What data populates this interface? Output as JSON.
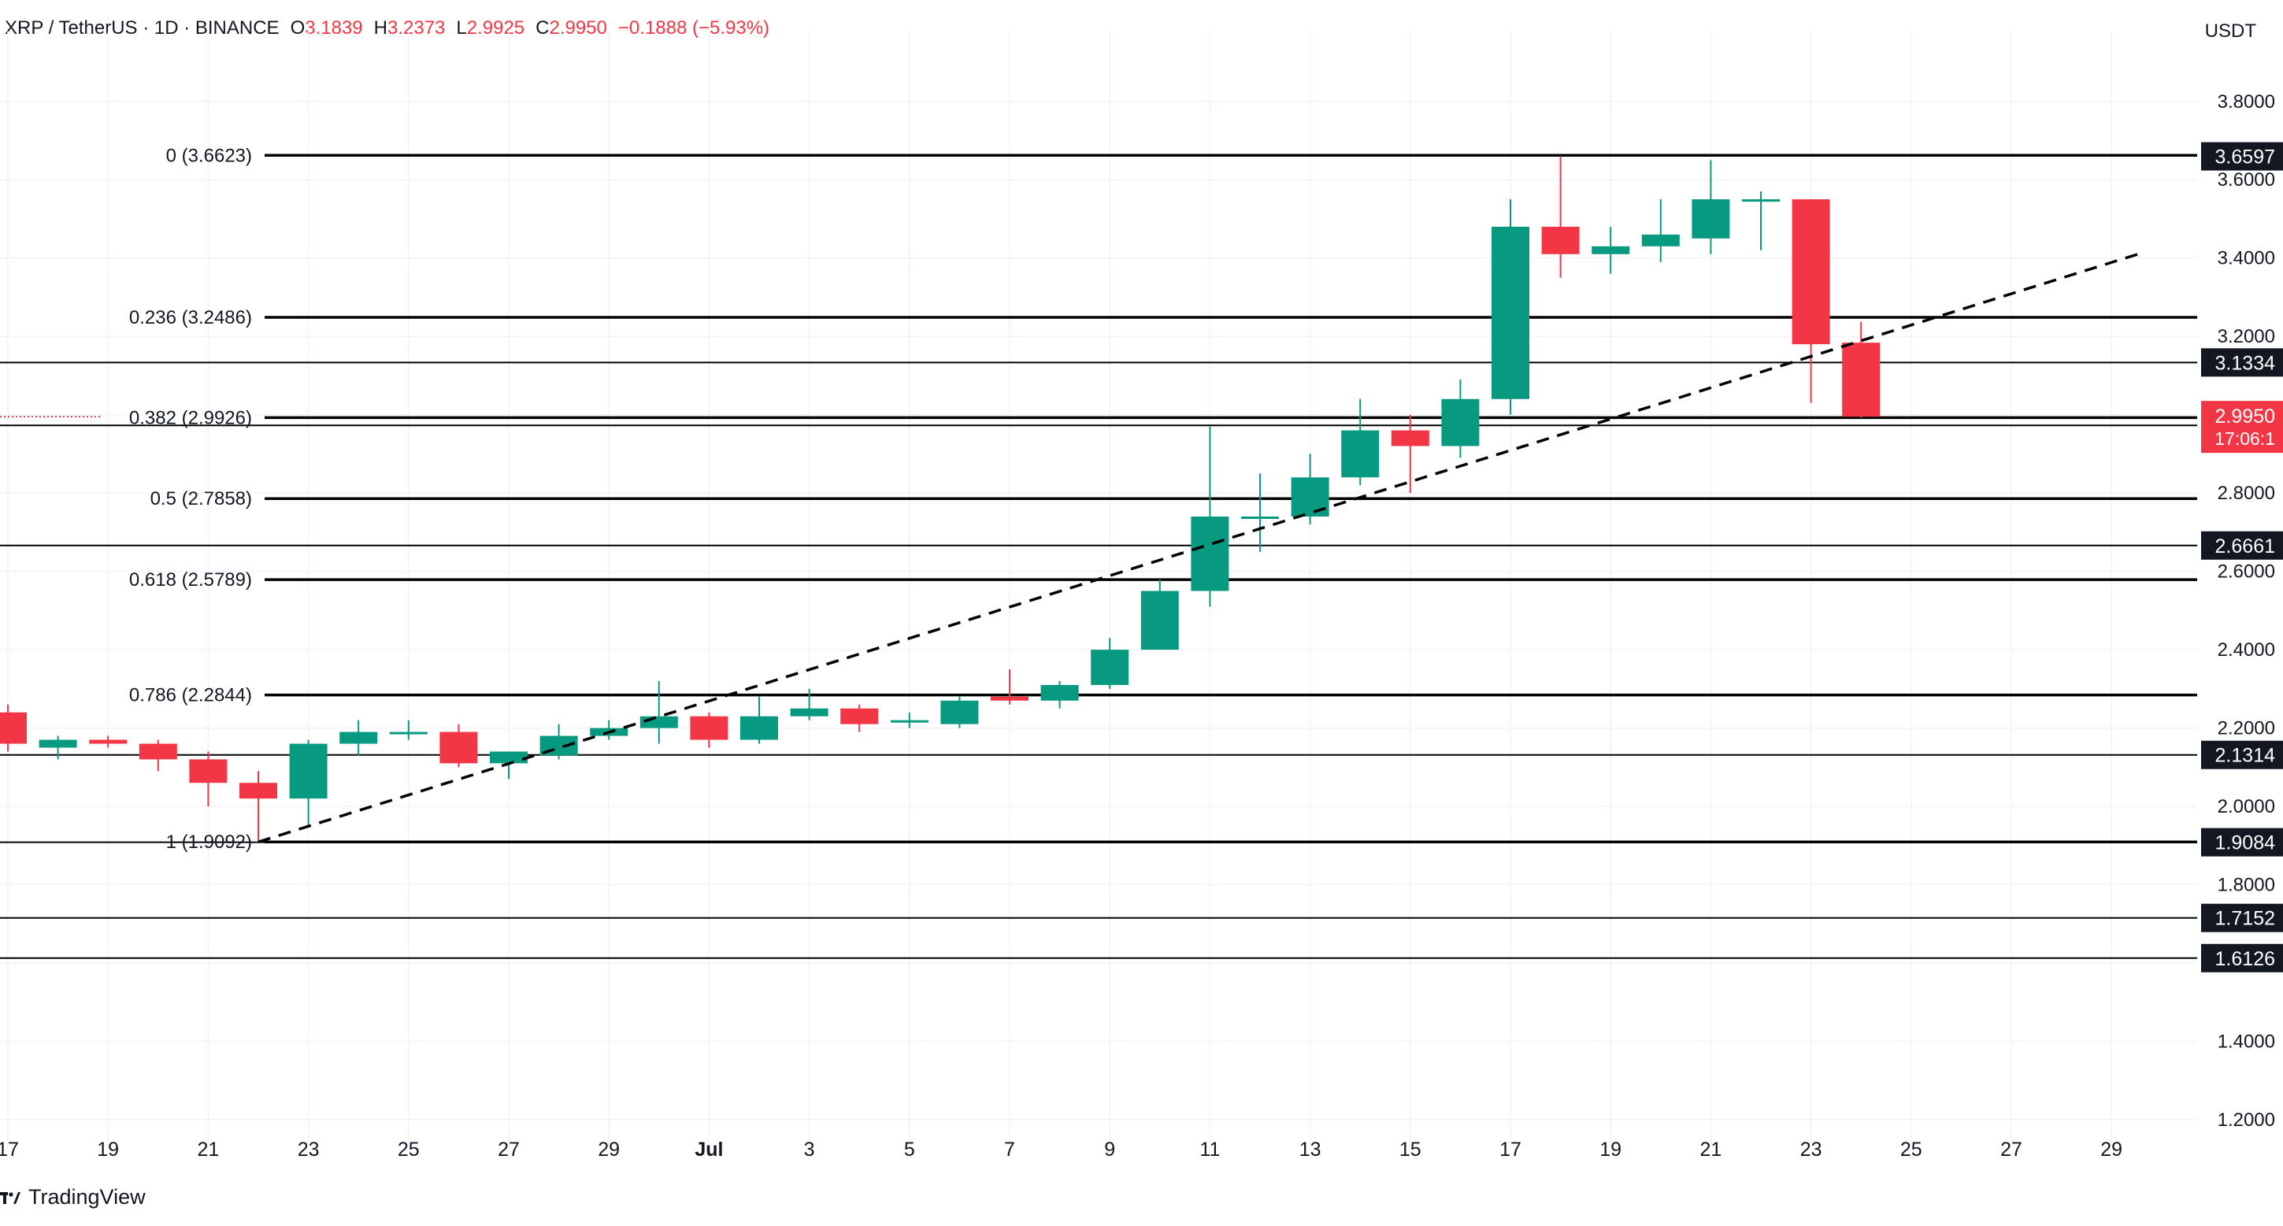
{
  "header": {
    "symbol": "XRP / TetherUS · 1D · BINANCE",
    "open_label": "O",
    "open": "3.1839",
    "high_label": "H",
    "high": "3.2373",
    "low_label": "L",
    "low": "2.9925",
    "close_label": "C",
    "close": "2.9950",
    "change": "−0.1888 (−5.93%)"
  },
  "currency": "USDT",
  "brand": "TradingView",
  "colors": {
    "up": "#089981",
    "down": "#f23645",
    "text": "#131722",
    "grid": "#f0f3fa",
    "line": "#000000"
  },
  "chart_data": {
    "type": "candlestick",
    "title": "XRP / TetherUS · 1D · BINANCE",
    "ylabel": "USDT",
    "ylim": [
      1.12,
      3.93
    ],
    "y_ticks": [
      "1.2000",
      "1.4000",
      "1.6000",
      "1.8000",
      "2.0000",
      "2.2000",
      "2.4000",
      "2.6000",
      "2.8000",
      "3.0000",
      "3.2000",
      "3.4000",
      "3.6000",
      "3.8000"
    ],
    "x_range": [
      "2025-06-17",
      "2025-07-30"
    ],
    "x_ticks": [
      {
        "date": "2025-06-17",
        "label": "17"
      },
      {
        "date": "2025-06-19",
        "label": "19"
      },
      {
        "date": "2025-06-21",
        "label": "21"
      },
      {
        "date": "2025-06-23",
        "label": "23"
      },
      {
        "date": "2025-06-25",
        "label": "25"
      },
      {
        "date": "2025-06-27",
        "label": "27"
      },
      {
        "date": "2025-06-29",
        "label": "29"
      },
      {
        "date": "2025-07-01",
        "label": "Jul"
      },
      {
        "date": "2025-07-03",
        "label": "3"
      },
      {
        "date": "2025-07-05",
        "label": "5"
      },
      {
        "date": "2025-07-07",
        "label": "7"
      },
      {
        "date": "2025-07-09",
        "label": "9"
      },
      {
        "date": "2025-07-11",
        "label": "11"
      },
      {
        "date": "2025-07-13",
        "label": "13"
      },
      {
        "date": "2025-07-15",
        "label": "15"
      },
      {
        "date": "2025-07-17",
        "label": "17"
      },
      {
        "date": "2025-07-19",
        "label": "19"
      },
      {
        "date": "2025-07-21",
        "label": "21"
      },
      {
        "date": "2025-07-23",
        "label": "23"
      },
      {
        "date": "2025-07-25",
        "label": "25"
      },
      {
        "date": "2025-07-27",
        "label": "27"
      },
      {
        "date": "2025-07-29",
        "label": "29"
      }
    ],
    "candles": [
      {
        "date": "2025-06-17",
        "o": 2.24,
        "h": 2.26,
        "l": 2.14,
        "c": 2.16
      },
      {
        "date": "2025-06-18",
        "o": 2.15,
        "h": 2.18,
        "l": 2.12,
        "c": 2.17
      },
      {
        "date": "2025-06-19",
        "o": 2.17,
        "h": 2.18,
        "l": 2.15,
        "c": 2.16
      },
      {
        "date": "2025-06-20",
        "o": 2.16,
        "h": 2.17,
        "l": 2.09,
        "c": 2.12
      },
      {
        "date": "2025-06-21",
        "o": 2.12,
        "h": 2.14,
        "l": 2.0,
        "c": 2.06
      },
      {
        "date": "2025-06-22",
        "o": 2.06,
        "h": 2.09,
        "l": 1.91,
        "c": 2.02
      },
      {
        "date": "2025-06-23",
        "o": 2.02,
        "h": 2.17,
        "l": 1.95,
        "c": 2.16
      },
      {
        "date": "2025-06-24",
        "o": 2.16,
        "h": 2.22,
        "l": 2.13,
        "c": 2.19
      },
      {
        "date": "2025-06-25",
        "o": 2.19,
        "h": 2.22,
        "l": 2.17,
        "c": 2.19
      },
      {
        "date": "2025-06-26",
        "o": 2.19,
        "h": 2.21,
        "l": 2.1,
        "c": 2.11
      },
      {
        "date": "2025-06-27",
        "o": 2.11,
        "h": 2.14,
        "l": 2.07,
        "c": 2.14
      },
      {
        "date": "2025-06-28",
        "o": 2.13,
        "h": 2.21,
        "l": 2.12,
        "c": 2.18
      },
      {
        "date": "2025-06-29",
        "o": 2.18,
        "h": 2.22,
        "l": 2.17,
        "c": 2.2
      },
      {
        "date": "2025-06-30",
        "o": 2.2,
        "h": 2.32,
        "l": 2.16,
        "c": 2.23
      },
      {
        "date": "2025-07-01",
        "o": 2.23,
        "h": 2.24,
        "l": 2.15,
        "c": 2.17
      },
      {
        "date": "2025-07-02",
        "o": 2.17,
        "h": 2.28,
        "l": 2.16,
        "c": 2.23
      },
      {
        "date": "2025-07-03",
        "o": 2.23,
        "h": 2.3,
        "l": 2.22,
        "c": 2.25
      },
      {
        "date": "2025-07-04",
        "o": 2.25,
        "h": 2.26,
        "l": 2.19,
        "c": 2.21
      },
      {
        "date": "2025-07-05",
        "o": 2.22,
        "h": 2.24,
        "l": 2.2,
        "c": 2.22
      },
      {
        "date": "2025-07-06",
        "o": 2.21,
        "h": 2.28,
        "l": 2.2,
        "c": 2.27
      },
      {
        "date": "2025-07-07",
        "o": 2.28,
        "h": 2.35,
        "l": 2.26,
        "c": 2.27
      },
      {
        "date": "2025-07-08",
        "o": 2.27,
        "h": 2.32,
        "l": 2.25,
        "c": 2.31
      },
      {
        "date": "2025-07-09",
        "o": 2.31,
        "h": 2.43,
        "l": 2.3,
        "c": 2.4
      },
      {
        "date": "2025-07-10",
        "o": 2.4,
        "h": 2.58,
        "l": 2.4,
        "c": 2.55
      },
      {
        "date": "2025-07-11",
        "o": 2.55,
        "h": 2.97,
        "l": 2.51,
        "c": 2.74
      },
      {
        "date": "2025-07-12",
        "o": 2.74,
        "h": 2.85,
        "l": 2.65,
        "c": 2.74
      },
      {
        "date": "2025-07-13",
        "o": 2.74,
        "h": 2.9,
        "l": 2.72,
        "c": 2.84
      },
      {
        "date": "2025-07-14",
        "o": 2.84,
        "h": 3.04,
        "l": 2.82,
        "c": 2.96
      },
      {
        "date": "2025-07-15",
        "o": 2.96,
        "h": 3.0,
        "l": 2.8,
        "c": 2.92
      },
      {
        "date": "2025-07-16",
        "o": 2.92,
        "h": 3.09,
        "l": 2.89,
        "c": 3.04
      },
      {
        "date": "2025-07-17",
        "o": 3.04,
        "h": 3.55,
        "l": 3.0,
        "c": 3.48
      },
      {
        "date": "2025-07-18",
        "o": 3.48,
        "h": 3.66,
        "l": 3.35,
        "c": 3.41
      },
      {
        "date": "2025-07-19",
        "o": 3.41,
        "h": 3.48,
        "l": 3.36,
        "c": 3.43
      },
      {
        "date": "2025-07-20",
        "o": 3.43,
        "h": 3.55,
        "l": 3.39,
        "c": 3.46
      },
      {
        "date": "2025-07-21",
        "o": 3.45,
        "h": 3.65,
        "l": 3.41,
        "c": 3.55
      },
      {
        "date": "2025-07-22",
        "o": 3.55,
        "h": 3.57,
        "l": 3.42,
        "c": 3.55
      },
      {
        "date": "2025-07-23",
        "o": 3.55,
        "h": 3.55,
        "l": 3.03,
        "c": 3.18
      },
      {
        "date": "2025-07-24",
        "o": 3.1839,
        "h": 3.2373,
        "l": 2.9925,
        "c": 2.995
      }
    ],
    "fib_levels": [
      {
        "label": "0 (3.6623)",
        "value": 3.6623
      },
      {
        "label": "0.236 (3.2486)",
        "value": 3.2486
      },
      {
        "label": "0.382 (2.9926)",
        "value": 2.9926
      },
      {
        "label": "0.5 (2.7858)",
        "value": 2.7858
      },
      {
        "label": "0.618 (2.5789)",
        "value": 2.5789
      },
      {
        "label": "0.786 (2.2844)",
        "value": 2.2844
      },
      {
        "label": "1 (1.9092)",
        "value": 1.9092
      }
    ],
    "fib_start_date": "2025-06-22",
    "horizontal_lines": [
      3.1334,
      2.9728,
      2.6661,
      2.1314,
      1.9084,
      1.7152,
      1.6126
    ],
    "price_tags": [
      {
        "value": 3.6597,
        "text": "3.6597",
        "style": "dark"
      },
      {
        "value": 3.1334,
        "text": "3.1334",
        "style": "dark"
      },
      {
        "value": 2.9728,
        "text": "2.9728",
        "style": "dark"
      },
      {
        "value": 2.6661,
        "text": "2.6661",
        "style": "dark"
      },
      {
        "value": 2.1314,
        "text": "2.1314",
        "style": "dark"
      },
      {
        "value": 1.9084,
        "text": "1.9084",
        "style": "dark"
      },
      {
        "value": 1.7152,
        "text": "1.7152",
        "style": "dark"
      },
      {
        "value": 1.6126,
        "text": "1.6126",
        "style": "dark"
      }
    ],
    "last_price": {
      "value": 2.995,
      "text": "2.9950",
      "countdown": "17:06:1"
    },
    "trendline": {
      "start": {
        "date": "2025-06-22",
        "value": 1.9092
      },
      "end": {
        "date": "2025-07-30",
        "value": 3.43
      }
    }
  }
}
